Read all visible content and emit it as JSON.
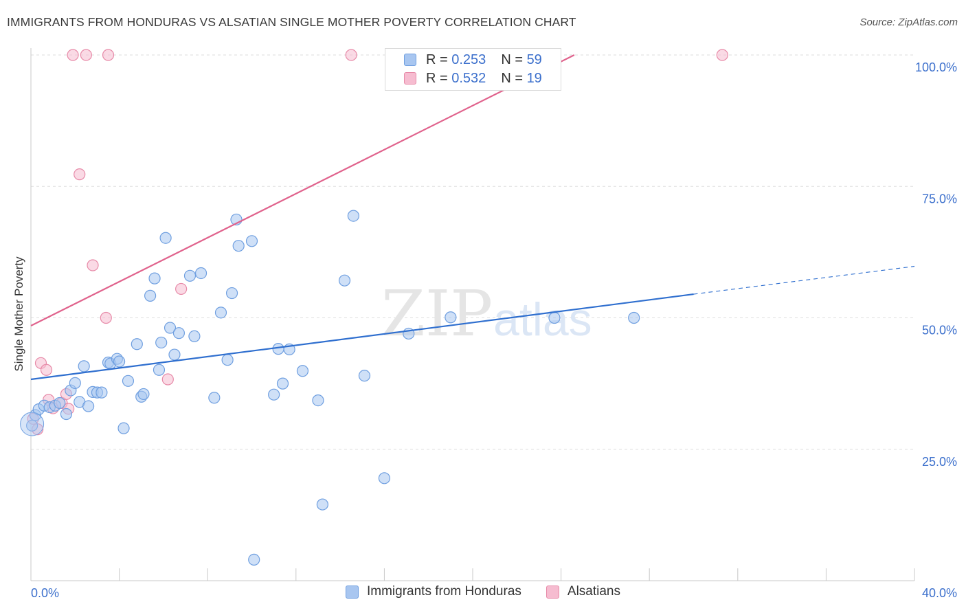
{
  "header": {
    "title": "IMMIGRANTS FROM HONDURAS VS ALSATIAN SINGLE MOTHER POVERTY CORRELATION CHART",
    "source": "Source: ZipAtlas.com"
  },
  "watermark": {
    "zip": "ZIP",
    "atlas": "atlas"
  },
  "legend_top": [
    {
      "r_label": "R =",
      "r_value": "0.253",
      "n_label": "N =",
      "n_value": "59"
    },
    {
      "r_label": "R =",
      "r_value": "0.532",
      "n_label": "N =",
      "n_value": "19"
    }
  ],
  "legend_bottom": [
    {
      "label": "Immigrants from Honduras"
    },
    {
      "label": "Alsatians"
    }
  ],
  "colors": {
    "blue_fill": "#a8c6f0",
    "blue_stroke": "#6f9fe0",
    "blue_line": "#2f6fcf",
    "pink_fill": "#f6bcd0",
    "pink_stroke": "#e78aa8",
    "pink_line": "#e0628c",
    "axis_text": "#3b6fcc",
    "grid": "#dddddd"
  },
  "chart_data": {
    "type": "scatter",
    "title": "IMMIGRANTS FROM HONDURAS VS ALSATIAN SINGLE MOTHER POVERTY CORRELATION CHART",
    "xlabel": "",
    "ylabel": "Single Mother Poverty",
    "xlim": [
      0,
      40
    ],
    "ylim": [
      0,
      100
    ],
    "x_tick_labels": [
      "0.0%",
      "40.0%"
    ],
    "y_tick_labels": [
      "25.0%",
      "50.0%",
      "75.0%",
      "100.0%"
    ],
    "y_ticks": [
      25,
      50,
      75,
      100
    ],
    "grid": true,
    "legend_position": "top-center",
    "series": [
      {
        "name": "Immigrants from Honduras",
        "r": 0.253,
        "n": 59,
        "trend": {
          "x": [
            0,
            30
          ],
          "y": [
            38.3,
            54.5
          ],
          "dashed_to": [
            40,
            59.8
          ]
        },
        "points": [
          [
            0.05,
            29.5
          ],
          [
            0.2,
            31.5
          ],
          [
            0.35,
            32.6
          ],
          [
            0.6,
            33.3
          ],
          [
            0.85,
            33.0
          ],
          [
            1.1,
            33.3
          ],
          [
            1.3,
            33.8
          ],
          [
            1.6,
            31.7
          ],
          [
            1.8,
            36.2
          ],
          [
            2.0,
            37.6
          ],
          [
            2.2,
            34.0
          ],
          [
            2.4,
            40.8
          ],
          [
            2.6,
            33.2
          ],
          [
            2.8,
            35.9
          ],
          [
            3.0,
            35.8
          ],
          [
            3.2,
            35.8
          ],
          [
            3.5,
            41.5
          ],
          [
            3.6,
            41.3
          ],
          [
            3.9,
            42.2
          ],
          [
            4.0,
            41.7
          ],
          [
            4.2,
            29.0
          ],
          [
            4.4,
            38.0
          ],
          [
            4.8,
            45.0
          ],
          [
            5.0,
            35.0
          ],
          [
            5.1,
            35.5
          ],
          [
            5.4,
            54.2
          ],
          [
            5.6,
            57.5
          ],
          [
            5.8,
            40.1
          ],
          [
            5.9,
            45.3
          ],
          [
            6.1,
            65.2
          ],
          [
            6.3,
            48.1
          ],
          [
            6.5,
            43.0
          ],
          [
            6.7,
            47.1
          ],
          [
            7.2,
            58.0
          ],
          [
            7.4,
            46.5
          ],
          [
            7.7,
            58.5
          ],
          [
            8.3,
            34.8
          ],
          [
            8.6,
            51.0
          ],
          [
            8.9,
            42.0
          ],
          [
            9.1,
            54.7
          ],
          [
            9.3,
            68.7
          ],
          [
            9.4,
            63.7
          ],
          [
            10.0,
            64.6
          ],
          [
            10.1,
            4.0
          ],
          [
            11.0,
            35.4
          ],
          [
            11.2,
            44.1
          ],
          [
            11.4,
            37.5
          ],
          [
            11.7,
            44.0
          ],
          [
            12.3,
            39.9
          ],
          [
            13.0,
            34.3
          ],
          [
            13.2,
            14.5
          ],
          [
            14.2,
            57.1
          ],
          [
            14.6,
            69.4
          ],
          [
            15.1,
            39.0
          ],
          [
            16.0,
            19.5
          ],
          [
            17.1,
            47.0
          ],
          [
            19.0,
            50.1
          ],
          [
            23.7,
            50.0
          ],
          [
            27.3,
            50.0
          ]
        ]
      },
      {
        "name": "Alsatians",
        "r": 0.532,
        "n": 19,
        "trend": {
          "x": [
            0,
            24.6
          ],
          "y": [
            48.5,
            100
          ]
        },
        "points": [
          [
            0.1,
            30.8
          ],
          [
            0.3,
            28.8
          ],
          [
            0.45,
            41.4
          ],
          [
            0.7,
            40.1
          ],
          [
            0.8,
            34.4
          ],
          [
            1.0,
            32.8
          ],
          [
            1.4,
            33.8
          ],
          [
            1.6,
            35.5
          ],
          [
            1.7,
            32.7
          ],
          [
            1.9,
            100.0
          ],
          [
            2.2,
            77.3
          ],
          [
            2.5,
            100.0
          ],
          [
            2.8,
            60.0
          ],
          [
            3.4,
            50.0
          ],
          [
            3.5,
            100.0
          ],
          [
            6.2,
            38.3
          ],
          [
            6.8,
            55.5
          ],
          [
            14.5,
            100.0
          ],
          [
            31.3,
            100.0
          ]
        ]
      }
    ]
  }
}
